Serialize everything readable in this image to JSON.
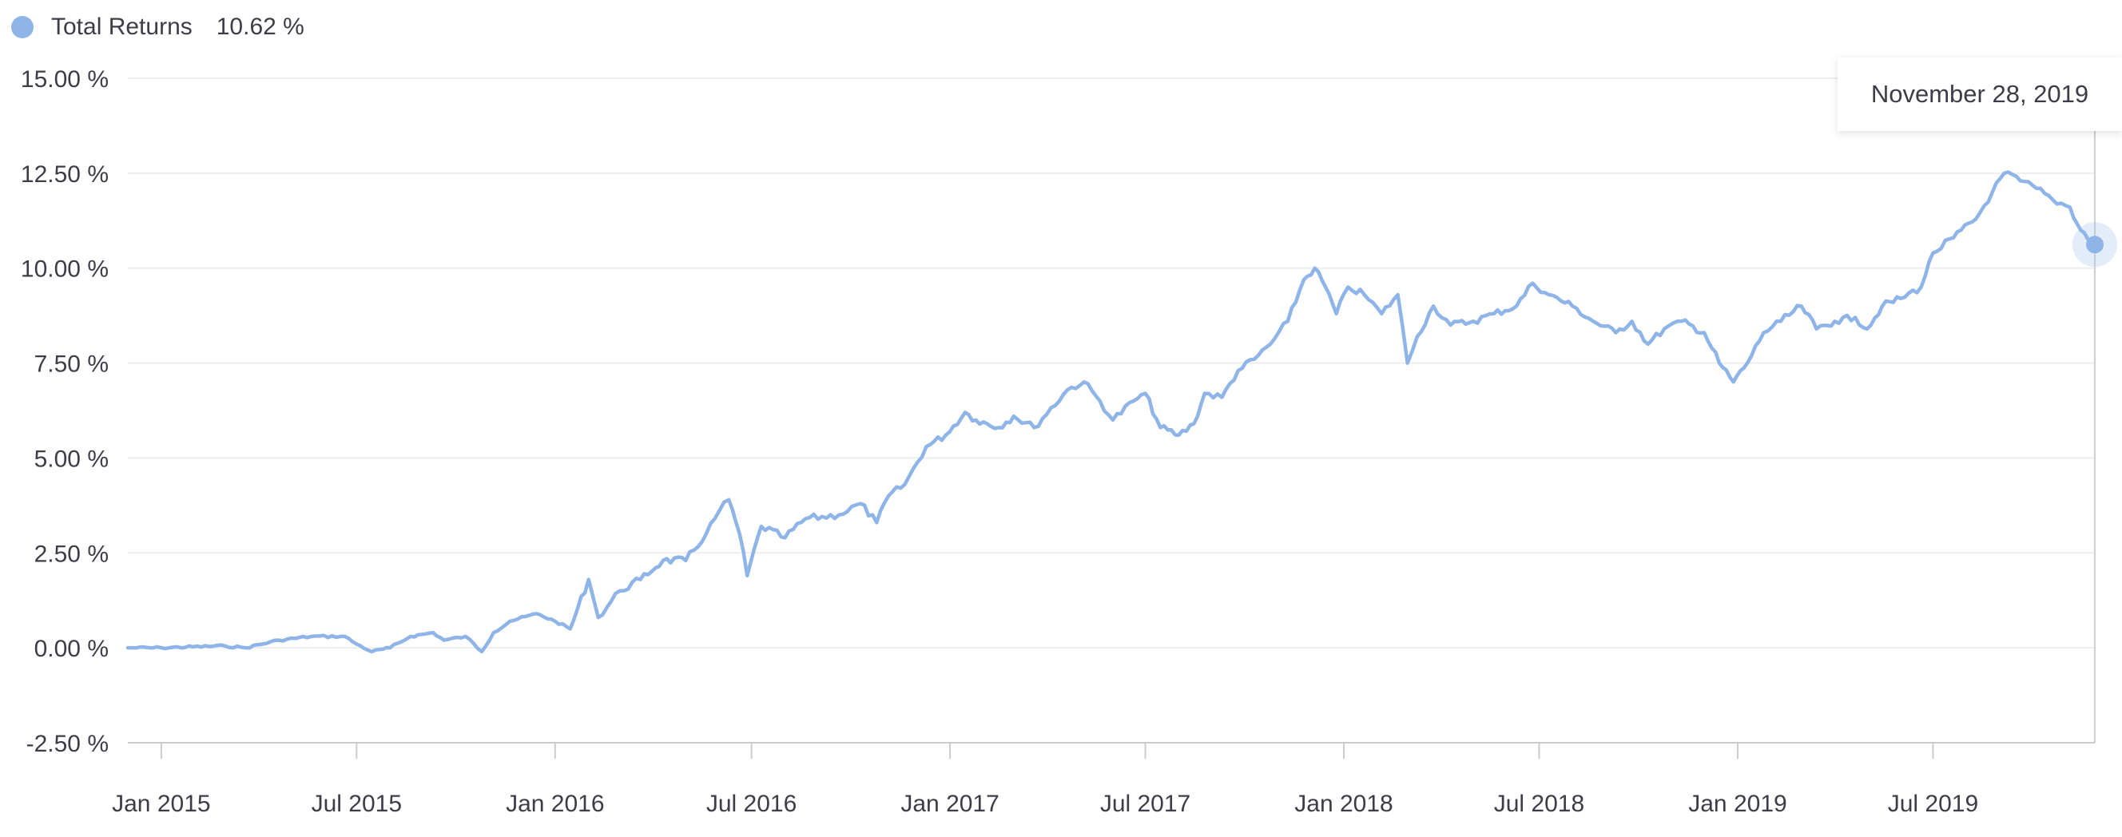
{
  "legend": {
    "label": "Total Returns",
    "value": "10.62 %",
    "color": "#8fb4e8"
  },
  "tooltip": {
    "date": "November 28, 2019"
  },
  "colors": {
    "line": "#8fb4e8",
    "grid": "#eeeeee",
    "axis": "#cccccc",
    "text": "#3d3d4a"
  },
  "chart_data": {
    "type": "line",
    "title": "",
    "xlabel": "",
    "ylabel": "",
    "x_range": [
      "2014-12-01",
      "2019-11-28"
    ],
    "ylim": [
      -2.5,
      15
    ],
    "y_ticks": [
      -2.5,
      0,
      2.5,
      5,
      7.5,
      10,
      12.5,
      15
    ],
    "y_tick_labels": [
      "-2.50 %",
      "0.00 %",
      "2.50 %",
      "5.00 %",
      "7.50 %",
      "10.00 %",
      "12.50 %",
      "15.00 %"
    ],
    "x_ticks": [
      "2015-01-01",
      "2015-07-01",
      "2016-01-01",
      "2016-07-01",
      "2017-01-01",
      "2017-07-01",
      "2018-01-01",
      "2018-07-01",
      "2019-01-01",
      "2019-07-01"
    ],
    "x_tick_labels": [
      "Jan 2015",
      "Jul 2015",
      "Jan 2016",
      "Jul 2016",
      "Jan 2017",
      "Jul 2017",
      "Jan 2018",
      "Jul 2018",
      "Jan 2019",
      "Jul 2019"
    ],
    "grid": true,
    "legend_position": "top-left",
    "series": [
      {
        "name": "Total Returns",
        "points": [
          [
            "2014-12-01",
            0.0
          ],
          [
            "2015-01-01",
            0.0
          ],
          [
            "2015-03-01",
            0.05
          ],
          [
            "2015-03-20",
            0.0
          ],
          [
            "2015-04-20",
            0.2
          ],
          [
            "2015-05-20",
            0.3
          ],
          [
            "2015-06-20",
            0.3
          ],
          [
            "2015-07-01",
            0.1
          ],
          [
            "2015-07-15",
            -0.1
          ],
          [
            "2015-08-01",
            0.0
          ],
          [
            "2015-08-20",
            0.3
          ],
          [
            "2015-09-10",
            0.4
          ],
          [
            "2015-09-20",
            0.2
          ],
          [
            "2015-10-10",
            0.3
          ],
          [
            "2015-10-25",
            -0.1
          ],
          [
            "2015-11-05",
            0.4
          ],
          [
            "2015-11-20",
            0.7
          ],
          [
            "2015-12-15",
            0.9
          ],
          [
            "2016-01-01",
            0.7
          ],
          [
            "2016-01-15",
            0.5
          ],
          [
            "2016-02-01",
            1.8
          ],
          [
            "2016-02-10",
            0.8
          ],
          [
            "2016-03-01",
            1.5
          ],
          [
            "2016-03-20",
            1.8
          ],
          [
            "2016-04-10",
            2.3
          ],
          [
            "2016-05-01",
            2.3
          ],
          [
            "2016-05-20",
            3.0
          ],
          [
            "2016-06-01",
            3.6
          ],
          [
            "2016-06-10",
            3.9
          ],
          [
            "2016-06-20",
            3.0
          ],
          [
            "2016-06-27",
            1.9
          ],
          [
            "2016-07-10",
            3.2
          ],
          [
            "2016-08-01",
            2.9
          ],
          [
            "2016-08-20",
            3.4
          ],
          [
            "2016-09-20",
            3.5
          ],
          [
            "2016-10-10",
            3.8
          ],
          [
            "2016-10-25",
            3.3
          ],
          [
            "2016-11-05",
            4.0
          ],
          [
            "2016-11-20",
            4.3
          ],
          [
            "2016-12-10",
            5.3
          ],
          [
            "2016-12-28",
            5.6
          ],
          [
            "2017-01-15",
            6.2
          ],
          [
            "2017-01-25",
            6.0
          ],
          [
            "2017-02-15",
            5.8
          ],
          [
            "2017-03-01",
            6.1
          ],
          [
            "2017-03-20",
            5.8
          ],
          [
            "2017-04-20",
            6.8
          ],
          [
            "2017-05-05",
            7.0
          ],
          [
            "2017-05-20",
            6.5
          ],
          [
            "2017-06-01",
            6.0
          ],
          [
            "2017-06-20",
            6.5
          ],
          [
            "2017-07-01",
            6.7
          ],
          [
            "2017-07-15",
            5.8
          ],
          [
            "2017-08-01",
            5.6
          ],
          [
            "2017-08-15",
            5.9
          ],
          [
            "2017-08-25",
            6.7
          ],
          [
            "2017-09-10",
            6.6
          ],
          [
            "2017-09-25",
            7.3
          ],
          [
            "2017-10-10",
            7.6
          ],
          [
            "2017-10-25",
            8.0
          ],
          [
            "2017-11-10",
            8.6
          ],
          [
            "2017-11-25",
            9.7
          ],
          [
            "2017-12-05",
            10.0
          ],
          [
            "2017-12-15",
            9.5
          ],
          [
            "2017-12-25",
            8.8
          ],
          [
            "2018-01-05",
            9.5
          ],
          [
            "2018-01-20",
            9.3
          ],
          [
            "2018-02-05",
            8.8
          ],
          [
            "2018-02-20",
            9.3
          ],
          [
            "2018-03-01",
            7.5
          ],
          [
            "2018-03-10",
            8.2
          ],
          [
            "2018-03-25",
            9.0
          ],
          [
            "2018-04-10",
            8.5
          ],
          [
            "2018-05-01",
            8.6
          ],
          [
            "2018-05-20",
            8.8
          ],
          [
            "2018-06-10",
            9.0
          ],
          [
            "2018-06-25",
            9.6
          ],
          [
            "2018-07-10",
            9.3
          ],
          [
            "2018-08-01",
            9.0
          ],
          [
            "2018-08-20",
            8.6
          ],
          [
            "2018-09-10",
            8.3
          ],
          [
            "2018-09-25",
            8.6
          ],
          [
            "2018-10-10",
            8.0
          ],
          [
            "2018-10-25",
            8.4
          ],
          [
            "2018-11-10",
            8.6
          ],
          [
            "2018-12-01",
            8.3
          ],
          [
            "2018-12-15",
            7.5
          ],
          [
            "2018-12-28",
            7.0
          ],
          [
            "2019-01-10",
            7.5
          ],
          [
            "2019-01-25",
            8.3
          ],
          [
            "2019-02-10",
            8.6
          ],
          [
            "2019-03-01",
            9.0
          ],
          [
            "2019-03-15",
            8.4
          ],
          [
            "2019-04-01",
            8.6
          ],
          [
            "2019-04-20",
            8.7
          ],
          [
            "2019-05-01",
            8.4
          ],
          [
            "2019-05-15",
            9.0
          ],
          [
            "2019-06-01",
            9.2
          ],
          [
            "2019-06-20",
            9.5
          ],
          [
            "2019-07-01",
            10.4
          ],
          [
            "2019-07-20",
            10.8
          ],
          [
            "2019-08-10",
            11.3
          ],
          [
            "2019-08-25",
            12.0
          ],
          [
            "2019-09-05",
            12.5
          ],
          [
            "2019-09-20",
            12.3
          ],
          [
            "2019-10-05",
            12.1
          ],
          [
            "2019-10-20",
            11.8
          ],
          [
            "2019-11-05",
            11.6
          ],
          [
            "2019-11-15",
            11.0
          ],
          [
            "2019-11-28",
            10.62
          ]
        ]
      }
    ],
    "highlight_point": [
      "2019-11-28",
      10.62
    ]
  }
}
